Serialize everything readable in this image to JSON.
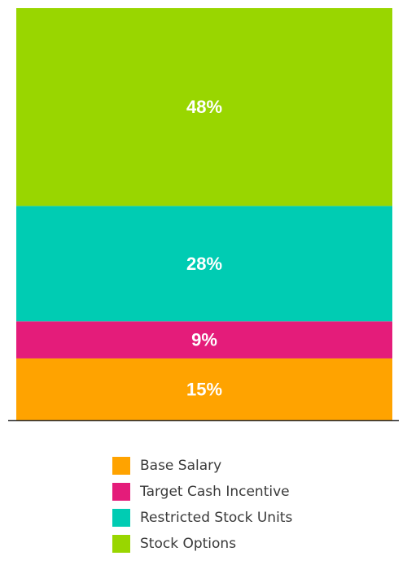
{
  "chart_data": {
    "type": "bar",
    "subtype": "stacked-100",
    "categories": [
      ""
    ],
    "series": [
      {
        "name": "Base Salary",
        "values": [
          15
        ],
        "label": "15%",
        "color": "#FFA300"
      },
      {
        "name": "Target Cash Incentive",
        "values": [
          9
        ],
        "label": "9%",
        "color": "#E41C7A"
      },
      {
        "name": "Restricted Stock Units",
        "values": [
          28
        ],
        "label": "28%",
        "color": "#00CCB3"
      },
      {
        "name": "Stock Options",
        "values": [
          48
        ],
        "label": "48%",
        "color": "#99D600"
      }
    ],
    "ylim": [
      0,
      100
    ],
    "grid": false,
    "legend_position": "bottom"
  },
  "colors": {
    "axis": "#333333",
    "label_text": "#ffffff",
    "legend_text": "#3a3a3a"
  }
}
